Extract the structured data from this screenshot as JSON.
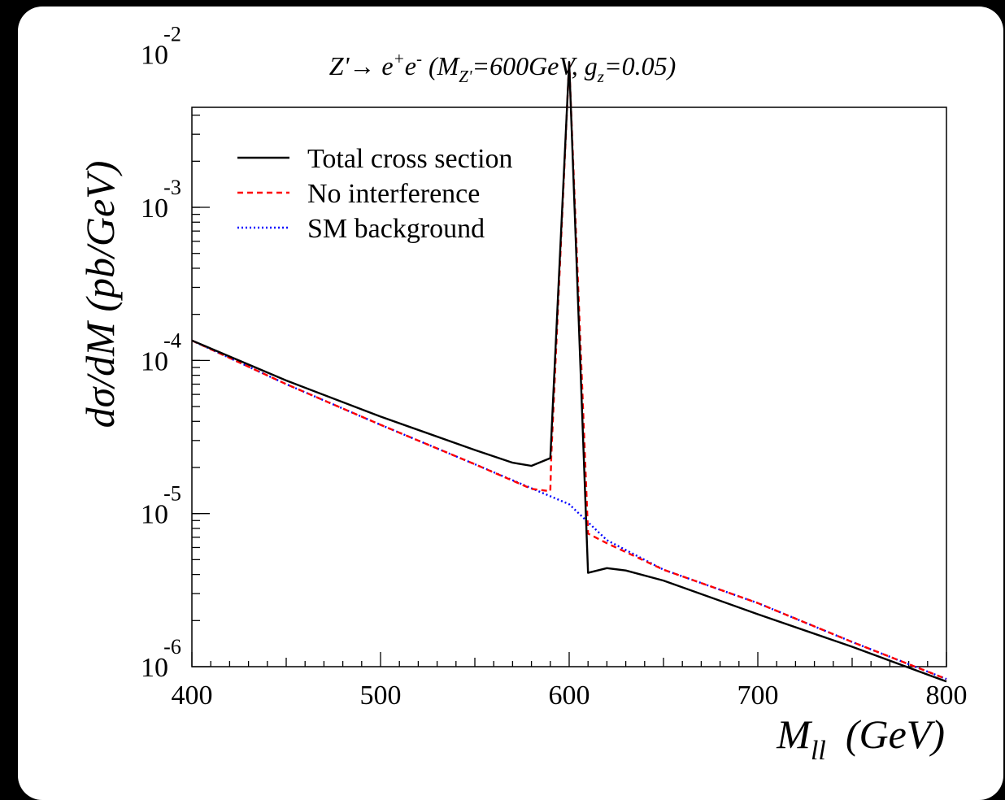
{
  "chart_data": {
    "type": "line",
    "title": {
      "pre": "Z'",
      "arrow": "→",
      "e": " e",
      "plus": "+",
      "e2": "e",
      "minus": "-",
      "open": " (M",
      "zsub": "Z'",
      "mid": "=600GeV, g",
      "gsub": "z",
      "close": "=0.05)"
    },
    "ylabel": "dσ/dM  (pb/GeV)",
    "xlabel": {
      "main": "M",
      "sub": "ll",
      "unit": "(GeV)"
    },
    "xlim": [
      400,
      800
    ],
    "ylog": true,
    "ylim": [
      1e-06,
      0.0045
    ],
    "x_ticks": [
      400,
      500,
      600,
      700,
      800
    ],
    "x_tick_labels": [
      "400",
      "500",
      "600",
      "700",
      "800"
    ],
    "y_ticks": [
      {
        "base": "10",
        "exp": "-6"
      },
      {
        "base": "10",
        "exp": "-5"
      },
      {
        "base": "10",
        "exp": "-4"
      },
      {
        "base": "10",
        "exp": "-3"
      },
      {
        "base": "10",
        "exp": "-2"
      }
    ],
    "legend_position": "top-left",
    "series": [
      {
        "name": "Total cross section",
        "color": "#000000",
        "dash": "solid",
        "points": [
          [
            400,
            0.000135
          ],
          [
            450,
            7.4e-05
          ],
          [
            500,
            4.3e-05
          ],
          [
            550,
            2.6e-05
          ],
          [
            570,
            2.15e-05
          ],
          [
            580,
            2.05e-05
          ],
          [
            590,
            2.3e-05
          ],
          [
            600,
            0.0089
          ],
          [
            610,
            4.1e-06
          ],
          [
            620,
            4.4e-06
          ],
          [
            630,
            4.25e-06
          ],
          [
            650,
            3.65e-06
          ],
          [
            700,
            2.2e-06
          ],
          [
            750,
            1.35e-06
          ],
          [
            800,
            8e-07
          ]
        ]
      },
      {
        "name": "No interference",
        "color": "#ff0000",
        "dash": "dashed",
        "points": [
          [
            400,
            0.000135
          ],
          [
            450,
            7e-05
          ],
          [
            500,
            3.8e-05
          ],
          [
            550,
            2.1e-05
          ],
          [
            580,
            1.45e-05
          ],
          [
            590,
            1.4e-05
          ],
          [
            590.5,
            2.4e-05
          ],
          [
            600,
            0.0089
          ],
          [
            610,
            7.4e-06
          ],
          [
            620,
            6.4e-06
          ],
          [
            650,
            4.3e-06
          ],
          [
            700,
            2.6e-06
          ],
          [
            750,
            1.45e-06
          ],
          [
            800,
            8.3e-07
          ]
        ]
      },
      {
        "name": "SM background",
        "color": "#0000ff",
        "dash": "dotted",
        "points": [
          [
            400,
            0.000135
          ],
          [
            450,
            7e-05
          ],
          [
            500,
            3.8e-05
          ],
          [
            550,
            2.1e-05
          ],
          [
            600,
            1.15e-05
          ],
          [
            620,
            6.7e-06
          ],
          [
            650,
            4.3e-06
          ],
          [
            700,
            2.6e-06
          ],
          [
            750,
            1.45e-06
          ],
          [
            800,
            8.3e-07
          ]
        ]
      }
    ]
  }
}
